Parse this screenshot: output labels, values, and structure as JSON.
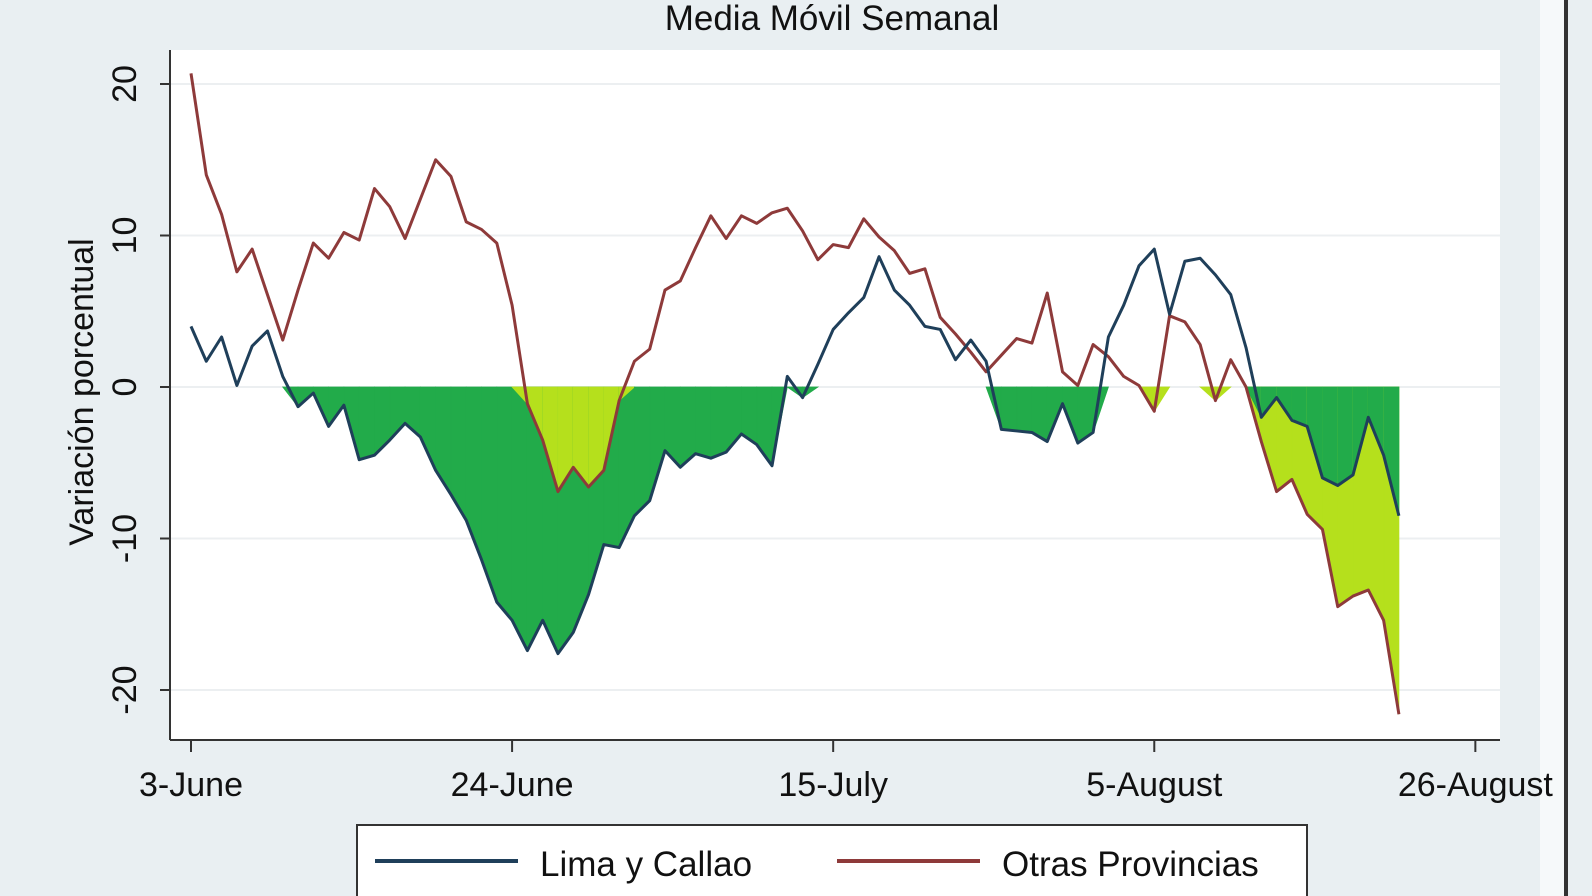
{
  "chart_data": {
    "type": "line",
    "title": "Media Móvil Semanal",
    "xlabel": "",
    "ylabel": "Variación porcentual",
    "ylim": [
      -23,
      22
    ],
    "yticks": [
      -20,
      -10,
      0,
      10,
      20
    ],
    "ytick_labels": [
      "-20",
      "-10",
      "0",
      "10",
      "20"
    ],
    "xtick_labels": [
      "3-June",
      "24-June",
      "15-July",
      "5-August",
      "26-August"
    ],
    "xtick_days": [
      0,
      21,
      42,
      63,
      84
    ],
    "x_start": "3-June",
    "x_step_days": 1,
    "grid": true,
    "legend_position": "bottom",
    "series": [
      {
        "name": "Lima y Callao",
        "color": "#1f3f5a",
        "fill_color": "#22ab4a",
        "values": [
          4.0,
          1.7,
          3.3,
          0.1,
          2.7,
          3.7,
          0.7,
          -1.3,
          -0.4,
          -2.6,
          -1.2,
          -4.8,
          -4.5,
          -3.5,
          -2.4,
          -3.3,
          -5.5,
          -7.1,
          -8.8,
          -11.4,
          -14.2,
          -15.4,
          -17.4,
          -15.4,
          -17.6,
          -16.2,
          -13.7,
          -10.4,
          -10.6,
          -8.5,
          -7.5,
          -4.2,
          -5.3,
          -4.4,
          -4.7,
          -4.3,
          -3.1,
          -3.8,
          -5.2,
          0.7,
          -0.7,
          1.5,
          3.8,
          4.9,
          5.9,
          8.6,
          6.4,
          5.4,
          4.0,
          3.8,
          1.8,
          3.1,
          1.7,
          -2.8,
          -2.9,
          -3.0,
          -3.6,
          -1.1,
          -3.7,
          -3.0,
          3.3,
          5.4,
          8.0,
          9.1,
          4.8,
          8.3,
          8.5,
          7.4,
          6.1,
          2.6,
          -2.0,
          -0.7,
          -2.2,
          -2.6,
          -6.0,
          -6.5,
          -5.8,
          -2.0,
          -4.5,
          -8.5
        ]
      },
      {
        "name": "Otras Provincias",
        "color": "#8e3a3a",
        "fill_color": "#b5e01c",
        "values": [
          20.7,
          14.0,
          11.4,
          7.6,
          9.1,
          6.1,
          3.1,
          6.4,
          9.5,
          8.5,
          10.2,
          9.7,
          13.1,
          11.9,
          9.8,
          12.4,
          15.0,
          13.9,
          10.9,
          10.4,
          9.5,
          5.4,
          -1.1,
          -3.5,
          -6.9,
          -5.3,
          -6.6,
          -5.5,
          -0.9,
          1.7,
          2.5,
          6.4,
          7.0,
          9.2,
          11.3,
          9.8,
          11.3,
          10.8,
          11.5,
          11.8,
          10.3,
          8.4,
          9.4,
          9.2,
          11.1,
          9.9,
          9.0,
          7.5,
          7.8,
          4.6,
          3.5,
          2.3,
          1.0,
          2.1,
          3.2,
          2.9,
          6.2,
          1.0,
          0.1,
          2.8,
          2.0,
          0.7,
          0.1,
          -1.6,
          4.7,
          4.3,
          2.8,
          -0.9,
          1.8,
          0.0,
          -3.6,
          -6.9,
          -6.1,
          -8.4,
          -9.4,
          -14.5,
          -13.8,
          -13.4,
          -15.4,
          -21.6
        ]
      }
    ]
  }
}
